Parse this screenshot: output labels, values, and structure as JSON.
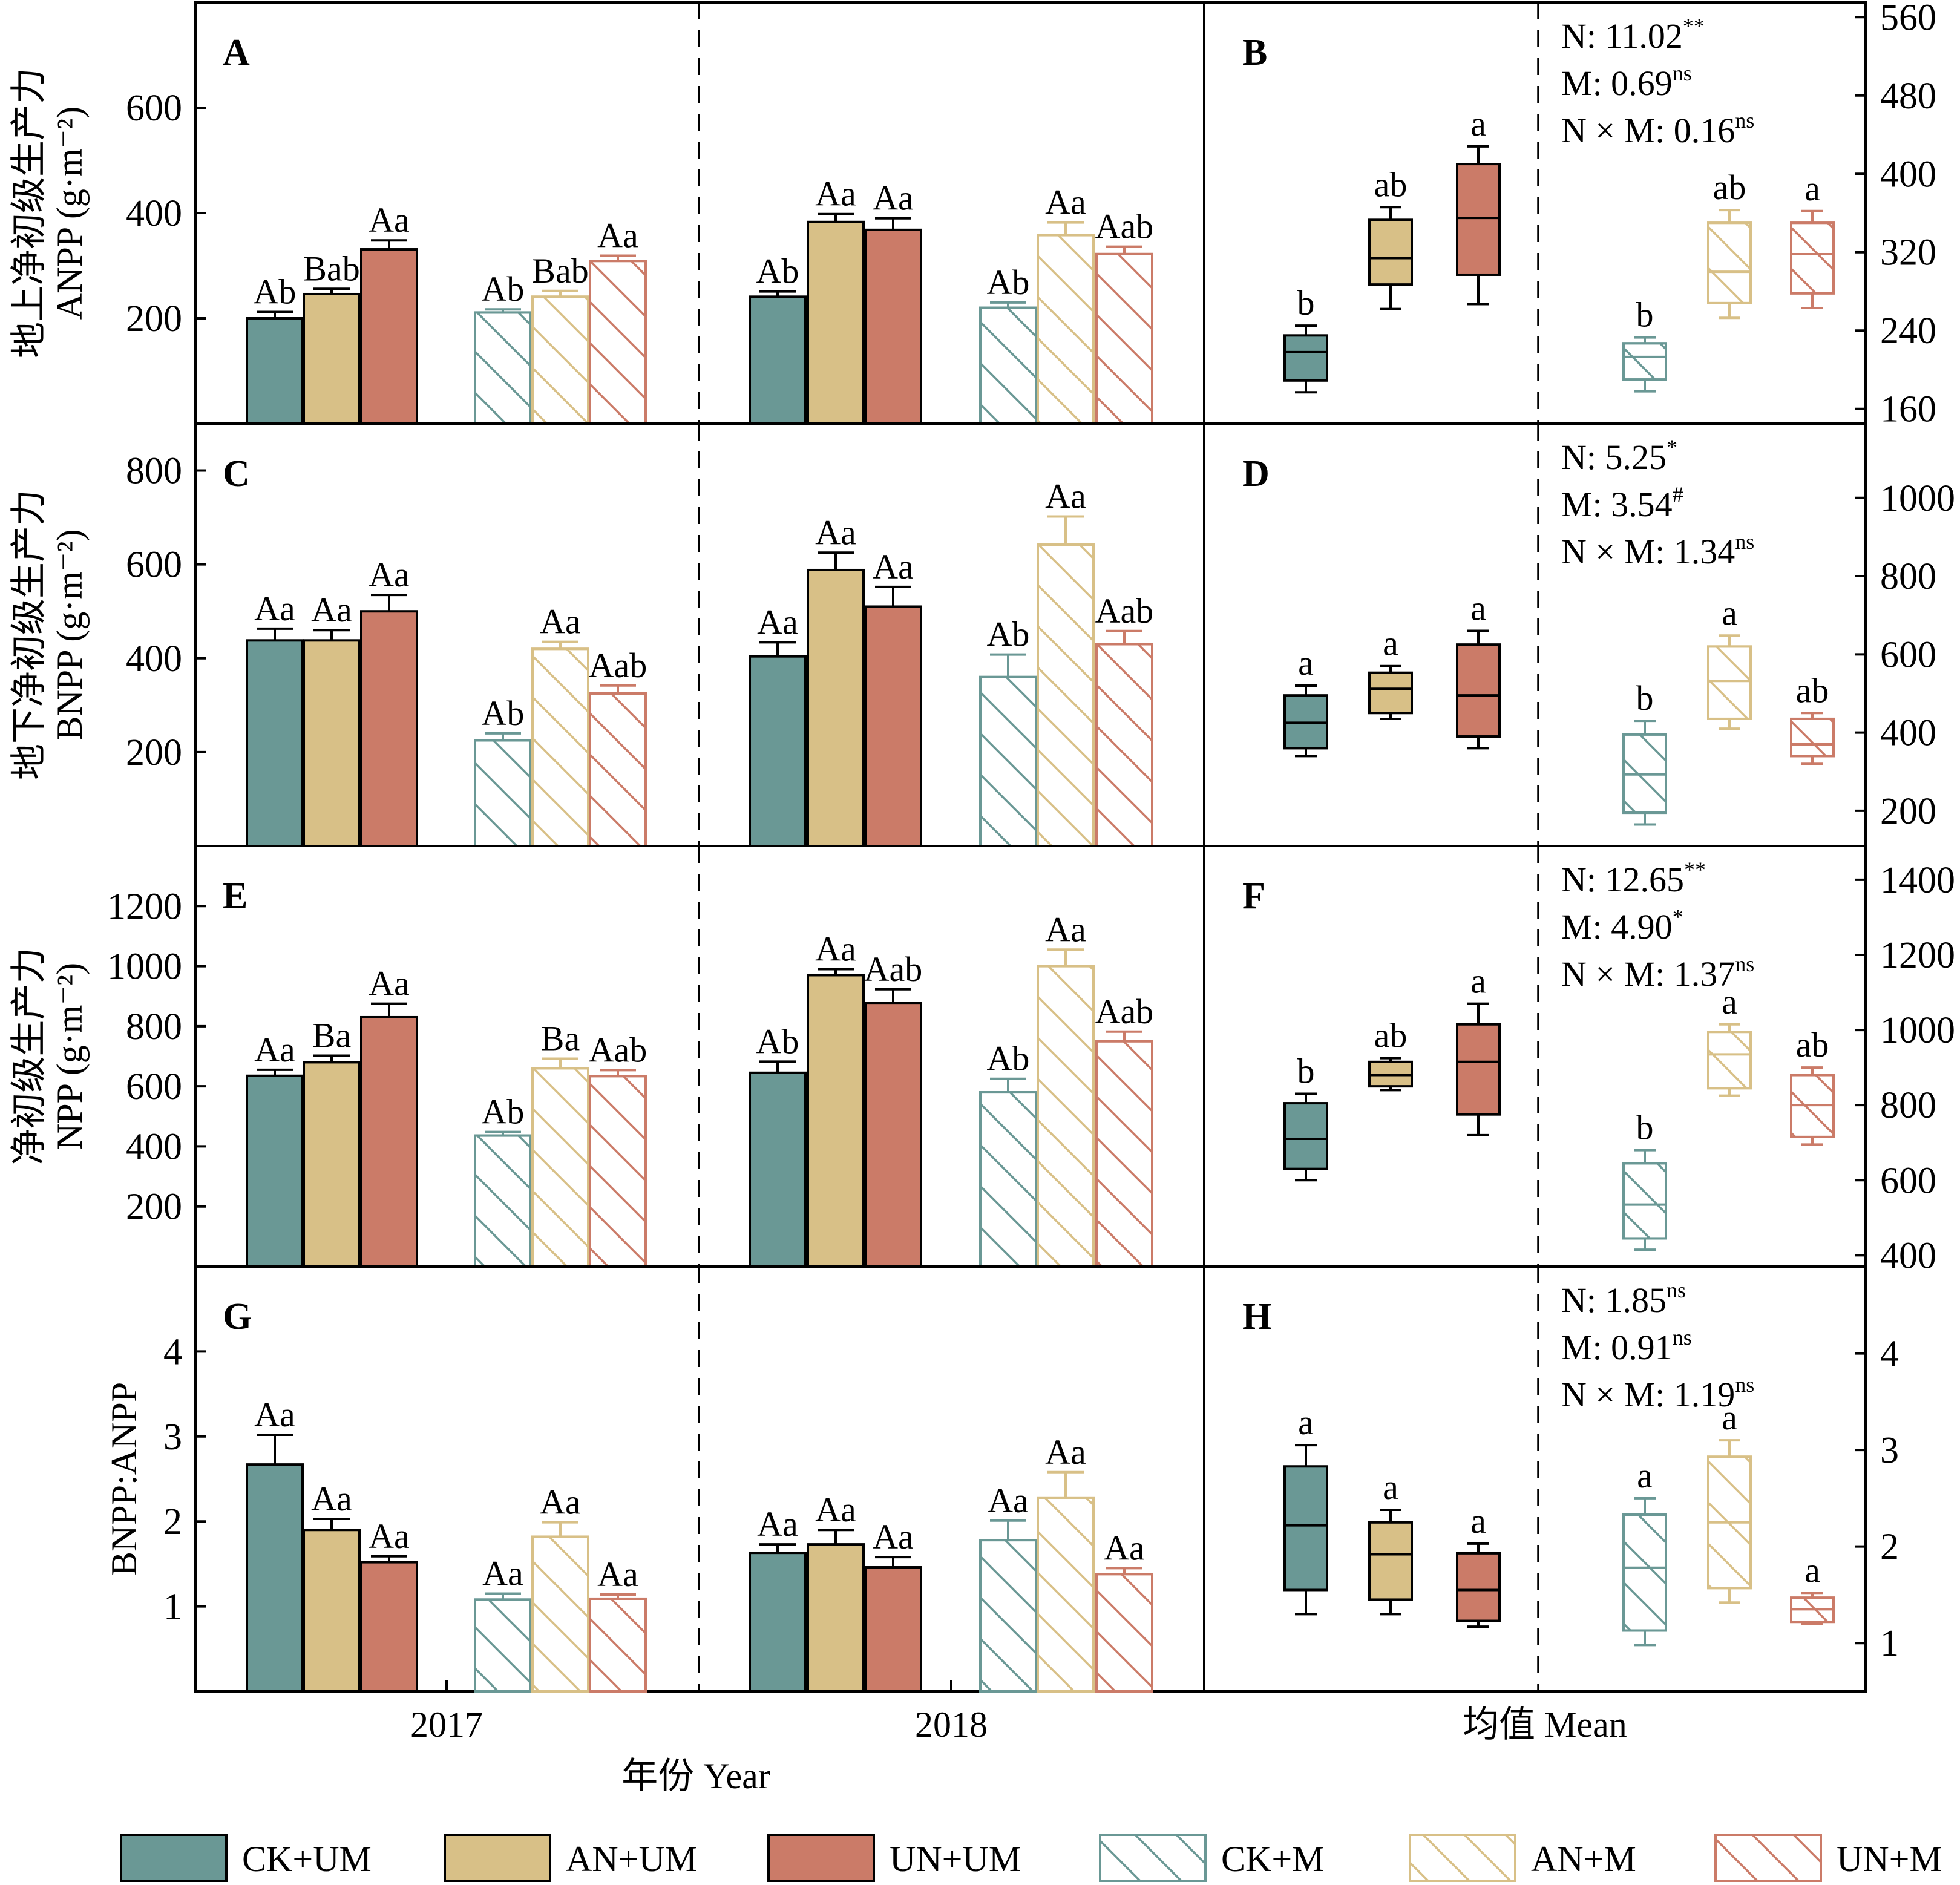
{
  "chart_data": [
    {
      "type": "bar",
      "panel": "A",
      "ylabel": [
        "地上净初级生产力",
        "ANPP (g·m⁻²)"
      ],
      "yticks": [
        200,
        400,
        600
      ],
      "ylim": [
        0,
        800
      ],
      "groups": [
        "2017",
        "2018"
      ],
      "series": [
        {
          "name": "CK+UM",
          "values": [
            200,
            241
          ],
          "errors": [
            12,
            10
          ],
          "labels": [
            "Ab",
            "Ab"
          ]
        },
        {
          "name": "AN+UM",
          "values": [
            246,
            383
          ],
          "errors": [
            10,
            15
          ],
          "labels": [
            "Bab",
            "Aa"
          ]
        },
        {
          "name": "UN+UM",
          "values": [
            331,
            368
          ],
          "errors": [
            17,
            22
          ],
          "labels": [
            "Aa",
            "Aa"
          ]
        },
        {
          "name": "CK+M",
          "values": [
            211,
            220
          ],
          "errors": [
            6,
            10
          ],
          "labels": [
            "Ab",
            "Ab"
          ]
        },
        {
          "name": "AN+M",
          "values": [
            241,
            358
          ],
          "errors": [
            11,
            24
          ],
          "labels": [
            "Bab",
            "Aa"
          ]
        },
        {
          "name": "UN+M",
          "values": [
            309,
            322
          ],
          "errors": [
            10,
            14
          ],
          "labels": [
            "Aa",
            "Aab"
          ]
        }
      ]
    },
    {
      "type": "box",
      "panel": "B",
      "yticks": [
        160,
        240,
        320,
        400,
        480,
        560
      ],
      "ylim": [
        145,
        575
      ],
      "stats": [
        {
          "label": "N: 11.02",
          "sup": "**"
        },
        {
          "label": "M: 0.69",
          "sup": "ns"
        },
        {
          "label": "N × M: 0.16",
          "sup": "ns"
        }
      ],
      "boxes": [
        {
          "name": "CK+UM",
          "min": 177,
          "q1": 189,
          "median": 218,
          "q3": 235,
          "max": 245,
          "label": "b"
        },
        {
          "name": "AN+UM",
          "min": 262,
          "q1": 287,
          "median": 314,
          "q3": 353,
          "max": 366,
          "label": "ab"
        },
        {
          "name": "UN+UM",
          "min": 267,
          "q1": 297,
          "median": 355,
          "q3": 410,
          "max": 428,
          "label": "a"
        },
        {
          "name": "CK+M",
          "min": 178,
          "q1": 190,
          "median": 213,
          "q3": 227,
          "max": 233,
          "label": "b"
        },
        {
          "name": "AN+M",
          "min": 253,
          "q1": 268,
          "median": 300,
          "q3": 350,
          "max": 363,
          "label": "ab"
        },
        {
          "name": "UN+M",
          "min": 263,
          "q1": 278,
          "median": 318,
          "q3": 350,
          "max": 362,
          "label": "a"
        }
      ]
    },
    {
      "type": "bar",
      "panel": "C",
      "ylabel": [
        "地下净初级生产力",
        "BNPP (g·m⁻²)"
      ],
      "yticks": [
        200,
        400,
        600,
        800
      ],
      "ylim": [
        0,
        900
      ],
      "groups": [
        "2017",
        "2018"
      ],
      "series": [
        {
          "name": "CK+UM",
          "values": [
            438,
            404
          ],
          "errors": [
            25,
            30
          ],
          "labels": [
            "Aa",
            "Aa"
          ]
        },
        {
          "name": "AN+UM",
          "values": [
            438,
            588
          ],
          "errors": [
            22,
            37
          ],
          "labels": [
            "Aa",
            "Aa"
          ]
        },
        {
          "name": "UN+UM",
          "values": [
            500,
            510
          ],
          "errors": [
            35,
            42
          ],
          "labels": [
            "Aa",
            "Aa"
          ]
        },
        {
          "name": "CK+M",
          "values": [
            225,
            360
          ],
          "errors": [
            15,
            48
          ],
          "labels": [
            "Ab",
            "Ab"
          ]
        },
        {
          "name": "AN+M",
          "values": [
            420,
            642
          ],
          "errors": [
            15,
            60
          ],
          "labels": [
            "Aa",
            "Aa"
          ]
        },
        {
          "name": "UN+M",
          "values": [
            325,
            430
          ],
          "errors": [
            17,
            28
          ],
          "labels": [
            "Aab",
            "Aab"
          ]
        }
      ]
    },
    {
      "type": "box",
      "panel": "D",
      "yticks": [
        200,
        400,
        600,
        800,
        1000
      ],
      "ylim": [
        110,
        1190
      ],
      "stats": [
        {
          "label": "N: 5.25",
          "sup": "*"
        },
        {
          "label": "M: 3.54",
          "sup": "#"
        },
        {
          "label": "N × M: 1.34",
          "sup": "ns"
        }
      ],
      "boxes": [
        {
          "name": "CK+UM",
          "min": 340,
          "q1": 360,
          "median": 425,
          "q3": 495,
          "max": 520,
          "label": "a"
        },
        {
          "name": "AN+UM",
          "min": 435,
          "q1": 450,
          "median": 512,
          "q3": 553,
          "max": 570,
          "label": "a"
        },
        {
          "name": "UN+UM",
          "min": 360,
          "q1": 390,
          "median": 495,
          "q3": 625,
          "max": 660,
          "label": "a"
        },
        {
          "name": "CK+M",
          "min": 165,
          "q1": 195,
          "median": 293,
          "q3": 395,
          "max": 430,
          "label": "b"
        },
        {
          "name": "AN+M",
          "min": 410,
          "q1": 435,
          "median": 532,
          "q3": 620,
          "max": 648,
          "label": "a"
        },
        {
          "name": "UN+M",
          "min": 320,
          "q1": 340,
          "median": 370,
          "q3": 435,
          "max": 450,
          "label": "ab"
        }
      ]
    },
    {
      "type": "bar",
      "panel": "E",
      "ylabel": [
        "净初级生产力",
        "NPP (g·m⁻²)"
      ],
      "yticks": [
        200,
        400,
        600,
        800,
        1000,
        1200
      ],
      "ylim": [
        0,
        1400
      ],
      "groups": [
        "2017",
        "2018"
      ],
      "series": [
        {
          "name": "CK+UM",
          "values": [
            635,
            645
          ],
          "errors": [
            20,
            37
          ],
          "labels": [
            "Aa",
            "Ab"
          ]
        },
        {
          "name": "AN+UM",
          "values": [
            680,
            970
          ],
          "errors": [
            22,
            20
          ],
          "labels": [
            "Ba",
            "Aa"
          ]
        },
        {
          "name": "UN+UM",
          "values": [
            830,
            878
          ],
          "errors": [
            45,
            45
          ],
          "labels": [
            "Aa",
            "Aab"
          ]
        },
        {
          "name": "CK+M",
          "values": [
            436,
            580
          ],
          "errors": [
            12,
            45
          ],
          "labels": [
            "Ab",
            "Ab"
          ]
        },
        {
          "name": "AN+M",
          "values": [
            660,
            1000
          ],
          "errors": [
            32,
            55
          ],
          "labels": [
            "Ba",
            "Aa"
          ]
        },
        {
          "name": "UN+M",
          "values": [
            634,
            750
          ],
          "errors": [
            20,
            32
          ],
          "labels": [
            "Aab",
            "Aab"
          ]
        }
      ]
    },
    {
      "type": "box",
      "panel": "F",
      "yticks": [
        400,
        600,
        800,
        1000,
        1200,
        1400
      ],
      "ylim": [
        370,
        1490
      ],
      "stats": [
        {
          "label": "N: 12.65",
          "sup": "**"
        },
        {
          "label": "M: 4.90",
          "sup": "*"
        },
        {
          "label": "N × M: 1.37",
          "sup": "ns"
        }
      ],
      "boxes": [
        {
          "name": "CK+UM",
          "min": 600,
          "q1": 630,
          "median": 710,
          "q3": 805,
          "max": 830,
          "label": "b"
        },
        {
          "name": "AN+UM",
          "min": 840,
          "q1": 850,
          "median": 880,
          "q3": 915,
          "max": 925,
          "label": "ab"
        },
        {
          "name": "UN+UM",
          "min": 720,
          "q1": 775,
          "median": 915,
          "q3": 1015,
          "max": 1070,
          "label": "a"
        },
        {
          "name": "CK+M",
          "min": 415,
          "q1": 445,
          "median": 535,
          "q3": 645,
          "max": 680,
          "label": "b"
        },
        {
          "name": "AN+M",
          "min": 825,
          "q1": 845,
          "median": 935,
          "q3": 995,
          "max": 1015,
          "label": "a"
        },
        {
          "name": "UN+M",
          "min": 695,
          "q1": 715,
          "median": 800,
          "q3": 880,
          "max": 900,
          "label": "ab"
        }
      ]
    },
    {
      "type": "bar",
      "panel": "G",
      "ylabel": [
        "BNPP:ANPP"
      ],
      "yticks": [
        1,
        2,
        3,
        4
      ],
      "ylim": [
        0,
        5
      ],
      "groups": [
        "2017",
        "2018"
      ],
      "series": [
        {
          "name": "CK+UM",
          "values": [
            2.67,
            1.63
          ],
          "errors": [
            0.35,
            0.1
          ],
          "labels": [
            "Aa",
            "Aa"
          ]
        },
        {
          "name": "AN+UM",
          "values": [
            1.9,
            1.73
          ],
          "errors": [
            0.13,
            0.17
          ],
          "labels": [
            "Aa",
            "Aa"
          ]
        },
        {
          "name": "UN+UM",
          "values": [
            1.52,
            1.46
          ],
          "errors": [
            0.07,
            0.12
          ],
          "labels": [
            "Aa",
            "Aa"
          ]
        },
        {
          "name": "CK+M",
          "values": [
            1.08,
            1.78
          ],
          "errors": [
            0.07,
            0.23
          ],
          "labels": [
            "Aa",
            "Aa"
          ]
        },
        {
          "name": "AN+M",
          "values": [
            1.82,
            2.28
          ],
          "errors": [
            0.17,
            0.3
          ],
          "labels": [
            "Aa",
            "Aa"
          ]
        },
        {
          "name": "UN+M",
          "values": [
            1.09,
            1.38
          ],
          "errors": [
            0.05,
            0.07
          ],
          "labels": [
            "Aa",
            "Aa"
          ]
        }
      ]
    },
    {
      "type": "box",
      "panel": "H",
      "yticks": [
        1,
        2,
        3,
        4
      ],
      "ylim": [
        0.5,
        4.9
      ],
      "stats": [
        {
          "label": "N: 1.85",
          "sup": "ns"
        },
        {
          "label": "M: 0.91",
          "sup": "ns"
        },
        {
          "label": "N × M: 1.19",
          "sup": "ns"
        }
      ],
      "boxes": [
        {
          "name": "CK+UM",
          "min": 1.3,
          "q1": 1.55,
          "median": 2.22,
          "q3": 2.83,
          "max": 3.05,
          "label": "a"
        },
        {
          "name": "AN+UM",
          "min": 1.3,
          "q1": 1.45,
          "median": 1.92,
          "q3": 2.25,
          "max": 2.38,
          "label": "a"
        },
        {
          "name": "UN+UM",
          "min": 1.17,
          "q1": 1.23,
          "median": 1.55,
          "q3": 1.93,
          "max": 2.03,
          "label": "a"
        },
        {
          "name": "CK+M",
          "min": 0.98,
          "q1": 1.13,
          "median": 1.78,
          "q3": 2.33,
          "max": 2.5,
          "label": "a"
        },
        {
          "name": "AN+M",
          "min": 1.42,
          "q1": 1.57,
          "median": 2.25,
          "q3": 2.93,
          "max": 3.1,
          "label": "a"
        },
        {
          "name": "UN+M",
          "min": 1.2,
          "q1": 1.22,
          "median": 1.35,
          "q3": 1.47,
          "max": 1.52,
          "label": "a"
        }
      ]
    }
  ],
  "series_styles": [
    {
      "name": "CK+UM",
      "color": "#6a9895",
      "hatched": false
    },
    {
      "name": "AN+UM",
      "color": "#d8c087",
      "hatched": false
    },
    {
      "name": "UN+UM",
      "color": "#cb7b68",
      "hatched": false
    },
    {
      "name": "CK+M",
      "color": "#6a9895",
      "hatched": true
    },
    {
      "name": "AN+M",
      "color": "#d8c087",
      "hatched": true
    },
    {
      "name": "UN+M",
      "color": "#cb7b68",
      "hatched": true
    }
  ],
  "xlabels": {
    "year_2017": "2017",
    "year_2018": "2018",
    "year_title": "年份 Year",
    "mean_title": "均值 Mean"
  },
  "legend": [
    "CK+UM",
    "AN+UM",
    "UN+UM",
    "CK+M",
    "AN+M",
    "UN+M"
  ]
}
